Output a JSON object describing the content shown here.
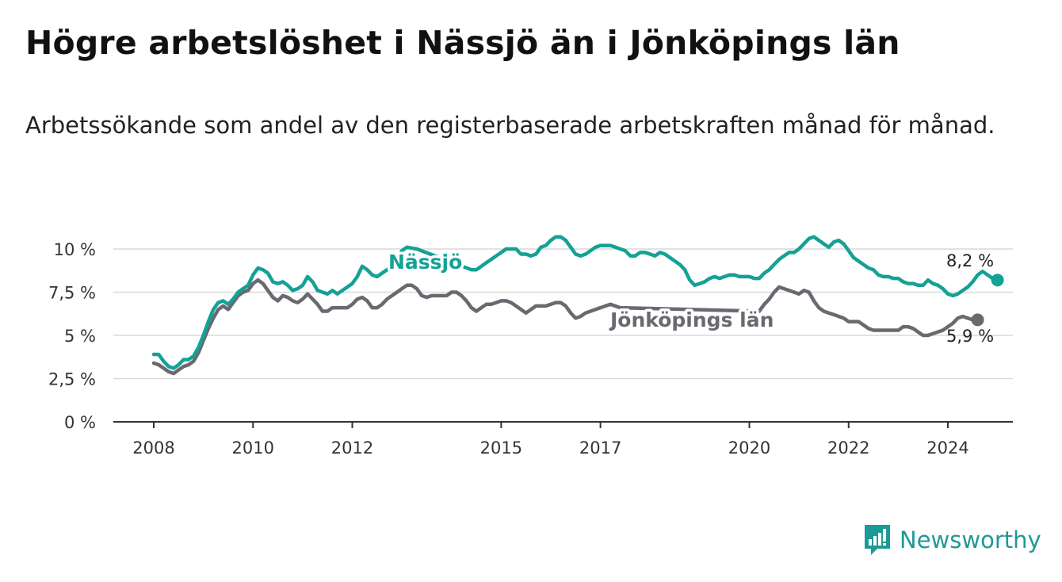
{
  "title": "Högre arbetslöshet i Nässjö än i Jönköpings län",
  "subtitle": "Arbetssökande som andel av den registerbaserade arbetskraften månad för månad.",
  "brand": "Newsworthy",
  "colors": {
    "nassjo": "#15a195",
    "jonkoping": "#6b6870",
    "grid": "#d9d9d9",
    "axis": "#333333"
  },
  "chart_data": {
    "type": "line",
    "title": "Högre arbetslöshet i Nässjö än i Jönköpings län",
    "ylabel": "",
    "xlabel": "",
    "ylim": [
      0,
      10
    ],
    "xlim": [
      2007.2,
      2025.3
    ],
    "yticks": [
      0,
      2.5,
      5,
      7.5,
      10
    ],
    "ytick_labels": [
      "0 %",
      "2,5 %",
      "5 %",
      "7,5 %",
      "10 %"
    ],
    "xticks": [
      2008,
      2010,
      2012,
      2015,
      2017,
      2020,
      2022,
      2024
    ],
    "xtick_labels": [
      "2008",
      "2010",
      "2012",
      "2015",
      "2017",
      "2020",
      "2022",
      "2024"
    ],
    "series": [
      {
        "name": "Nässjö",
        "label": "Nässjö",
        "end_label": "8,2 %",
        "color": "#15a195",
        "points": [
          [
            2008.0,
            3.9
          ],
          [
            2008.1,
            3.9
          ],
          [
            2008.2,
            3.5
          ],
          [
            2008.3,
            3.2
          ],
          [
            2008.4,
            3.1
          ],
          [
            2008.5,
            3.3
          ],
          [
            2008.6,
            3.6
          ],
          [
            2008.7,
            3.6
          ],
          [
            2008.8,
            3.8
          ],
          [
            2008.9,
            4.3
          ],
          [
            2009.0,
            5.0
          ],
          [
            2009.1,
            5.8
          ],
          [
            2009.2,
            6.5
          ],
          [
            2009.3,
            6.9
          ],
          [
            2009.4,
            7.0
          ],
          [
            2009.5,
            6.8
          ],
          [
            2009.6,
            7.1
          ],
          [
            2009.7,
            7.5
          ],
          [
            2009.8,
            7.7
          ],
          [
            2009.9,
            7.9
          ],
          [
            2010.0,
            8.5
          ],
          [
            2010.1,
            8.9
          ],
          [
            2010.2,
            8.8
          ],
          [
            2010.3,
            8.6
          ],
          [
            2010.4,
            8.1
          ],
          [
            2010.5,
            8.0
          ],
          [
            2010.6,
            8.1
          ],
          [
            2010.7,
            7.9
          ],
          [
            2010.8,
            7.6
          ],
          [
            2010.9,
            7.7
          ],
          [
            2011.0,
            7.9
          ],
          [
            2011.1,
            8.4
          ],
          [
            2011.2,
            8.1
          ],
          [
            2011.3,
            7.6
          ],
          [
            2011.4,
            7.5
          ],
          [
            2011.5,
            7.4
          ],
          [
            2011.6,
            7.6
          ],
          [
            2011.7,
            7.4
          ],
          [
            2011.8,
            7.6
          ],
          [
            2011.9,
            7.8
          ],
          [
            2012.0,
            8.0
          ],
          [
            2012.1,
            8.4
          ],
          [
            2012.2,
            9.0
          ],
          [
            2012.3,
            8.8
          ],
          [
            2012.4,
            8.5
          ],
          [
            2012.5,
            8.4
          ],
          [
            2012.6,
            8.6
          ],
          [
            2012.8,
            9.0
          ],
          [
            2012.9,
            9.4
          ],
          [
            2013.0,
            9.9
          ],
          [
            2013.1,
            10.1
          ],
          [
            2013.3,
            10.0
          ],
          [
            2014.4,
            8.8
          ],
          [
            2014.5,
            8.8
          ],
          [
            2014.6,
            9.0
          ],
          [
            2014.7,
            9.2
          ],
          [
            2014.8,
            9.4
          ],
          [
            2014.9,
            9.6
          ],
          [
            2015.0,
            9.8
          ],
          [
            2015.1,
            10.0
          ],
          [
            2015.2,
            10.0
          ],
          [
            2015.3,
            10.0
          ],
          [
            2015.4,
            9.7
          ],
          [
            2015.5,
            9.7
          ],
          [
            2015.6,
            9.6
          ],
          [
            2015.7,
            9.7
          ],
          [
            2015.8,
            10.1
          ],
          [
            2015.9,
            10.2
          ],
          [
            2016.0,
            10.5
          ],
          [
            2016.1,
            10.7
          ],
          [
            2016.2,
            10.7
          ],
          [
            2016.3,
            10.5
          ],
          [
            2016.4,
            10.1
          ],
          [
            2016.5,
            9.7
          ],
          [
            2016.6,
            9.6
          ],
          [
            2016.7,
            9.7
          ],
          [
            2016.8,
            9.9
          ],
          [
            2016.9,
            10.1
          ],
          [
            2017.0,
            10.2
          ],
          [
            2017.1,
            10.2
          ],
          [
            2017.2,
            10.2
          ],
          [
            2017.3,
            10.1
          ],
          [
            2017.4,
            10.0
          ],
          [
            2017.5,
            9.9
          ],
          [
            2017.6,
            9.6
          ],
          [
            2017.7,
            9.6
          ],
          [
            2017.8,
            9.8
          ],
          [
            2017.9,
            9.8
          ],
          [
            2018.0,
            9.7
          ],
          [
            2018.1,
            9.6
          ],
          [
            2018.2,
            9.8
          ],
          [
            2018.3,
            9.7
          ],
          [
            2018.4,
            9.5
          ],
          [
            2018.5,
            9.3
          ],
          [
            2018.6,
            9.1
          ],
          [
            2018.7,
            8.8
          ],
          [
            2018.8,
            8.2
          ],
          [
            2018.9,
            7.9
          ],
          [
            2019.0,
            8.0
          ],
          [
            2019.1,
            8.1
          ],
          [
            2019.2,
            8.3
          ],
          [
            2019.3,
            8.4
          ],
          [
            2019.4,
            8.3
          ],
          [
            2019.5,
            8.4
          ],
          [
            2019.6,
            8.5
          ],
          [
            2019.7,
            8.5
          ],
          [
            2019.8,
            8.4
          ],
          [
            2019.9,
            8.4
          ],
          [
            2020.0,
            8.4
          ],
          [
            2020.1,
            8.3
          ],
          [
            2020.2,
            8.3
          ],
          [
            2020.3,
            8.6
          ],
          [
            2020.4,
            8.8
          ],
          [
            2020.5,
            9.1
          ],
          [
            2020.6,
            9.4
          ],
          [
            2020.7,
            9.6
          ],
          [
            2020.8,
            9.8
          ],
          [
            2020.9,
            9.8
          ],
          [
            2021.0,
            10.0
          ],
          [
            2021.1,
            10.3
          ],
          [
            2021.2,
            10.6
          ],
          [
            2021.3,
            10.7
          ],
          [
            2021.4,
            10.5
          ],
          [
            2021.5,
            10.3
          ],
          [
            2021.6,
            10.1
          ],
          [
            2021.7,
            10.4
          ],
          [
            2021.8,
            10.5
          ],
          [
            2021.9,
            10.3
          ],
          [
            2022.0,
            9.9
          ],
          [
            2022.1,
            9.5
          ],
          [
            2022.2,
            9.3
          ],
          [
            2022.3,
            9.1
          ],
          [
            2022.4,
            8.9
          ],
          [
            2022.5,
            8.8
          ],
          [
            2022.6,
            8.5
          ],
          [
            2022.7,
            8.4
          ],
          [
            2022.8,
            8.4
          ],
          [
            2022.9,
            8.3
          ],
          [
            2023.0,
            8.3
          ],
          [
            2023.1,
            8.1
          ],
          [
            2023.2,
            8.0
          ],
          [
            2023.3,
            8.0
          ],
          [
            2023.4,
            7.9
          ],
          [
            2023.5,
            7.9
          ],
          [
            2023.6,
            8.2
          ],
          [
            2023.7,
            8.0
          ],
          [
            2023.8,
            7.9
          ],
          [
            2023.9,
            7.7
          ],
          [
            2024.0,
            7.4
          ],
          [
            2024.1,
            7.3
          ],
          [
            2024.2,
            7.4
          ],
          [
            2024.3,
            7.6
          ],
          [
            2024.4,
            7.8
          ],
          [
            2024.5,
            8.1
          ],
          [
            2024.6,
            8.5
          ],
          [
            2024.7,
            8.7
          ],
          [
            2024.8,
            8.5
          ],
          [
            2024.9,
            8.3
          ],
          [
            2025.0,
            8.2
          ]
        ]
      },
      {
        "name": "Jönköpings län",
        "label": "Jönköpings län",
        "end_label": "5,9 %",
        "color": "#6b6870",
        "points": [
          [
            2008.0,
            3.4
          ],
          [
            2008.1,
            3.3
          ],
          [
            2008.2,
            3.1
          ],
          [
            2008.3,
            2.9
          ],
          [
            2008.4,
            2.8
          ],
          [
            2008.5,
            3.0
          ],
          [
            2008.6,
            3.2
          ],
          [
            2008.7,
            3.3
          ],
          [
            2008.8,
            3.5
          ],
          [
            2008.9,
            4.0
          ],
          [
            2009.0,
            4.7
          ],
          [
            2009.1,
            5.4
          ],
          [
            2009.2,
            6.0
          ],
          [
            2009.3,
            6.5
          ],
          [
            2009.4,
            6.7
          ],
          [
            2009.5,
            6.5
          ],
          [
            2009.6,
            6.9
          ],
          [
            2009.7,
            7.3
          ],
          [
            2009.8,
            7.5
          ],
          [
            2009.9,
            7.6
          ],
          [
            2010.0,
            8.0
          ],
          [
            2010.1,
            8.2
          ],
          [
            2010.2,
            8.0
          ],
          [
            2010.3,
            7.6
          ],
          [
            2010.4,
            7.2
          ],
          [
            2010.5,
            7.0
          ],
          [
            2010.6,
            7.3
          ],
          [
            2010.7,
            7.2
          ],
          [
            2010.8,
            7.0
          ],
          [
            2010.9,
            6.9
          ],
          [
            2011.0,
            7.1
          ],
          [
            2011.1,
            7.4
          ],
          [
            2011.2,
            7.1
          ],
          [
            2011.3,
            6.8
          ],
          [
            2011.4,
            6.4
          ],
          [
            2011.5,
            6.4
          ],
          [
            2011.6,
            6.6
          ],
          [
            2011.7,
            6.6
          ],
          [
            2011.8,
            6.6
          ],
          [
            2011.9,
            6.6
          ],
          [
            2012.0,
            6.8
          ],
          [
            2012.1,
            7.1
          ],
          [
            2012.2,
            7.2
          ],
          [
            2012.3,
            7.0
          ],
          [
            2012.4,
            6.6
          ],
          [
            2012.5,
            6.6
          ],
          [
            2012.6,
            6.8
          ],
          [
            2012.7,
            7.1
          ],
          [
            2012.8,
            7.3
          ],
          [
            2012.9,
            7.5
          ],
          [
            2013.0,
            7.7
          ],
          [
            2013.1,
            7.9
          ],
          [
            2013.2,
            7.9
          ],
          [
            2013.3,
            7.7
          ],
          [
            2013.4,
            7.3
          ],
          [
            2013.5,
            7.2
          ],
          [
            2013.6,
            7.3
          ],
          [
            2013.7,
            7.3
          ],
          [
            2013.8,
            7.3
          ],
          [
            2013.9,
            7.3
          ],
          [
            2014.0,
            7.5
          ],
          [
            2014.1,
            7.5
          ],
          [
            2014.2,
            7.3
          ],
          [
            2014.3,
            7.0
          ],
          [
            2014.4,
            6.6
          ],
          [
            2014.5,
            6.4
          ],
          [
            2014.6,
            6.6
          ],
          [
            2014.7,
            6.8
          ],
          [
            2014.8,
            6.8
          ],
          [
            2014.9,
            6.9
          ],
          [
            2015.0,
            7.0
          ],
          [
            2015.1,
            7.0
          ],
          [
            2015.2,
            6.9
          ],
          [
            2015.3,
            6.7
          ],
          [
            2015.4,
            6.5
          ],
          [
            2015.5,
            6.3
          ],
          [
            2015.6,
            6.5
          ],
          [
            2015.7,
            6.7
          ],
          [
            2015.8,
            6.7
          ],
          [
            2015.9,
            6.7
          ],
          [
            2016.0,
            6.8
          ],
          [
            2016.1,
            6.9
          ],
          [
            2016.2,
            6.9
          ],
          [
            2016.3,
            6.7
          ],
          [
            2016.4,
            6.3
          ],
          [
            2016.5,
            6.0
          ],
          [
            2016.6,
            6.1
          ],
          [
            2016.7,
            6.3
          ],
          [
            2016.8,
            6.4
          ],
          [
            2016.9,
            6.5
          ],
          [
            2017.0,
            6.6
          ],
          [
            2017.1,
            6.7
          ],
          [
            2017.2,
            6.8
          ],
          [
            2017.3,
            6.7
          ],
          [
            2017.4,
            6.6
          ],
          [
            2020.2,
            6.4
          ],
          [
            2020.3,
            6.8
          ],
          [
            2020.4,
            7.1
          ],
          [
            2020.5,
            7.5
          ],
          [
            2020.6,
            7.8
          ],
          [
            2020.7,
            7.7
          ],
          [
            2020.8,
            7.6
          ],
          [
            2020.9,
            7.5
          ],
          [
            2021.0,
            7.4
          ],
          [
            2021.1,
            7.6
          ],
          [
            2021.2,
            7.5
          ],
          [
            2021.3,
            7.0
          ],
          [
            2021.4,
            6.6
          ],
          [
            2021.5,
            6.4
          ],
          [
            2021.6,
            6.3
          ],
          [
            2021.7,
            6.2
          ],
          [
            2021.8,
            6.1
          ],
          [
            2021.9,
            6.0
          ],
          [
            2022.0,
            5.8
          ],
          [
            2022.1,
            5.8
          ],
          [
            2022.2,
            5.8
          ],
          [
            2022.3,
            5.6
          ],
          [
            2022.4,
            5.4
          ],
          [
            2022.5,
            5.3
          ],
          [
            2022.6,
            5.3
          ],
          [
            2022.7,
            5.3
          ],
          [
            2022.8,
            5.3
          ],
          [
            2022.9,
            5.3
          ],
          [
            2023.0,
            5.3
          ],
          [
            2023.1,
            5.5
          ],
          [
            2023.2,
            5.5
          ],
          [
            2023.3,
            5.4
          ],
          [
            2023.4,
            5.2
          ],
          [
            2023.5,
            5.0
          ],
          [
            2023.6,
            5.0
          ],
          [
            2023.7,
            5.1
          ],
          [
            2023.8,
            5.2
          ],
          [
            2023.9,
            5.3
          ],
          [
            2024.0,
            5.5
          ],
          [
            2024.1,
            5.7
          ],
          [
            2024.2,
            6.0
          ],
          [
            2024.3,
            6.1
          ],
          [
            2024.4,
            6.0
          ],
          [
            2024.5,
            5.9
          ],
          [
            2024.6,
            5.9
          ]
        ]
      }
    ]
  }
}
